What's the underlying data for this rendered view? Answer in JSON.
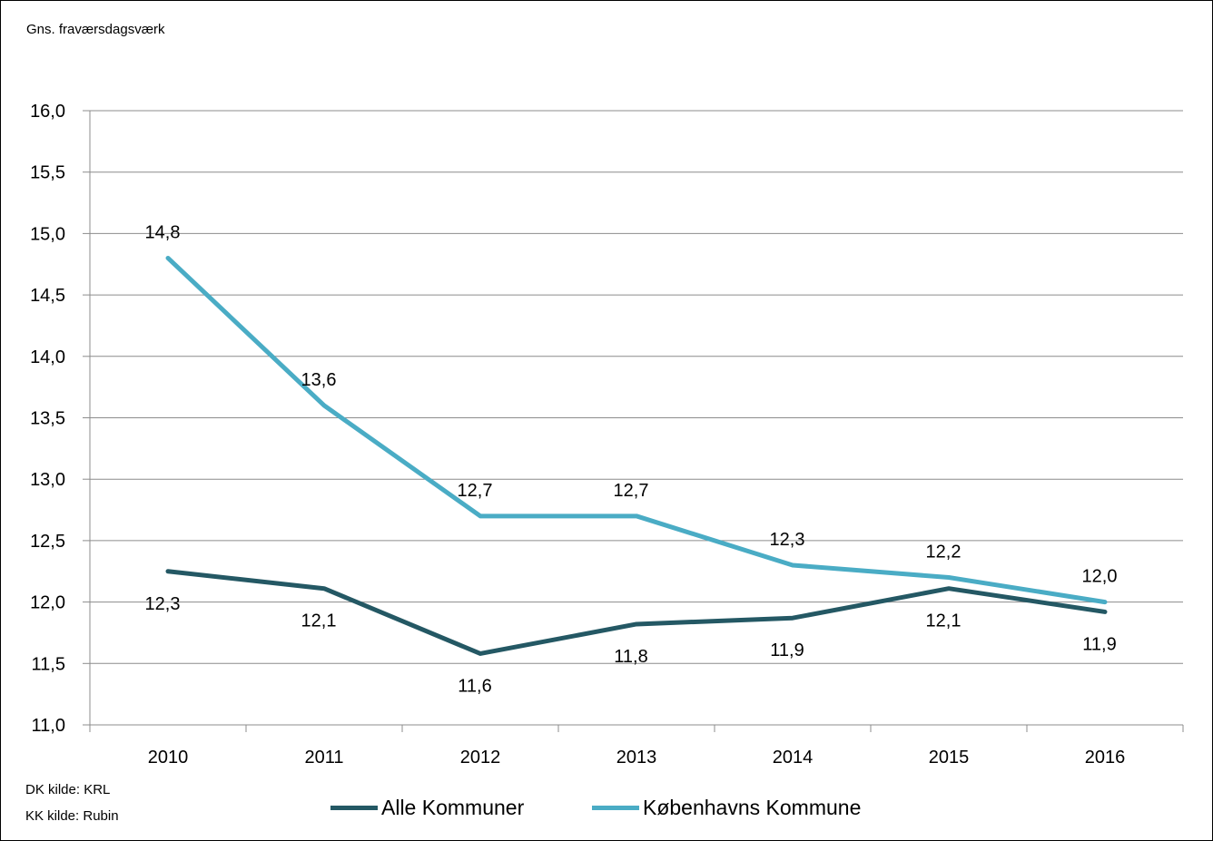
{
  "chart_data": {
    "type": "line",
    "ylabel": "Gns. fraværsdagsværk",
    "categories": [
      "2010",
      "2011",
      "2012",
      "2013",
      "2014",
      "2015",
      "2016"
    ],
    "ylim": [
      11.0,
      16.0
    ],
    "ytick_step": 0.5,
    "yticks": [
      "11,0",
      "11,5",
      "12,0",
      "12,5",
      "13,0",
      "13,5",
      "14,0",
      "14,5",
      "15,0",
      "15,5",
      "16,0"
    ],
    "grid": true,
    "legend_position": "bottom",
    "series": [
      {
        "name": "Alle Kommuner",
        "color": "#245864",
        "values": [
          12.25,
          12.11,
          11.58,
          11.82,
          11.87,
          12.11,
          11.92
        ],
        "labels": [
          "12,3",
          "12,1",
          "11,6",
          "11,8",
          "11,9",
          "12,1",
          "11,9"
        ]
      },
      {
        "name": "Københavns Kommune",
        "color": "#4aacc5",
        "values": [
          14.8,
          13.6,
          12.7,
          12.7,
          12.3,
          12.2,
          12.0
        ],
        "labels": [
          "14,8",
          "13,6",
          "12,7",
          "12,7",
          "12,3",
          "12,2",
          "12,0"
        ]
      }
    ]
  },
  "source": {
    "dk": "DK kilde: KRL",
    "kk": "KK kilde: Rubin"
  }
}
